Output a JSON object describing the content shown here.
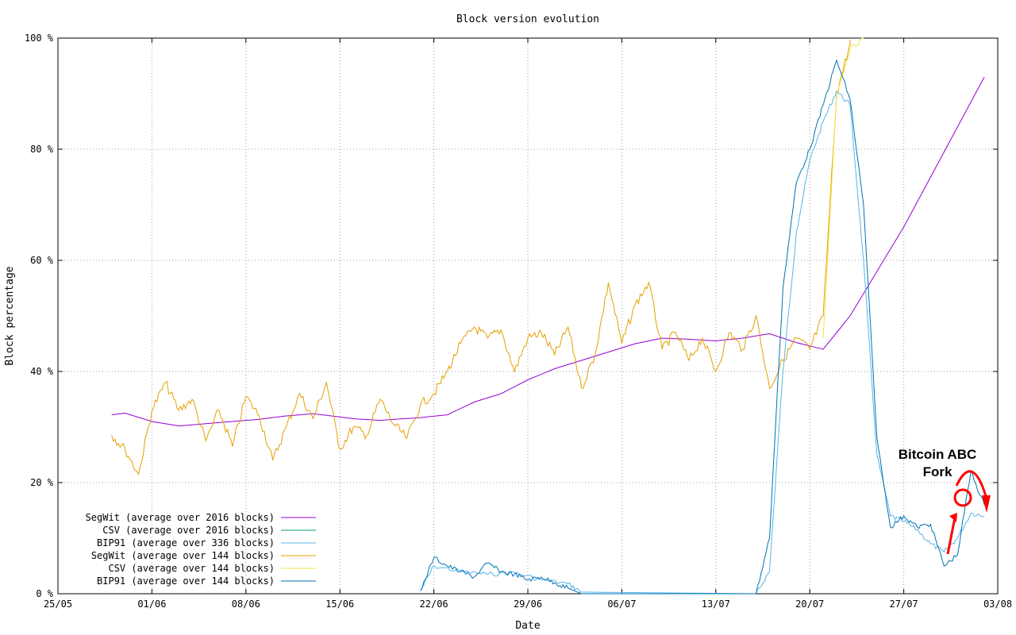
{
  "chart_data": {
    "type": "line",
    "title": "Block version evolution",
    "xlabel": "Date",
    "ylabel": "Block percentage",
    "x_ticks": [
      "25/05",
      "01/06",
      "08/06",
      "15/06",
      "22/06",
      "29/06",
      "06/07",
      "13/07",
      "20/07",
      "27/07",
      "03/08"
    ],
    "y_ticks": [
      "0 %",
      "20 %",
      "40 %",
      "60 %",
      "80 %",
      "100 %"
    ],
    "xlim": [
      "25/05",
      "03/08"
    ],
    "ylim": [
      0,
      100
    ],
    "grid": true,
    "legend_position": "bottom-left",
    "series": [
      {
        "name": "SegWit (average over 2016 blocks)",
        "color": "#9400d3",
        "points": [
          [
            "29/05",
            32.2
          ],
          [
            "30/05",
            32.5
          ],
          [
            "01/06",
            31
          ],
          [
            "03/06",
            30.2
          ],
          [
            "06/06",
            30.8
          ],
          [
            "09/06",
            31.4
          ],
          [
            "11/06",
            32.0
          ],
          [
            "13/06",
            32.4
          ],
          [
            "16/06",
            31.5
          ],
          [
            "18/06",
            31.2
          ],
          [
            "21/06",
            31.7
          ],
          [
            "23/06",
            32.2
          ],
          [
            "25/06",
            34.5
          ],
          [
            "27/06",
            36.0
          ],
          [
            "29/06",
            38.5
          ],
          [
            "01/07",
            40.5
          ],
          [
            "03/07",
            42.0
          ],
          [
            "05/07",
            43.5
          ],
          [
            "07/07",
            45.0
          ],
          [
            "09/07",
            46.0
          ],
          [
            "11/07",
            45.8
          ],
          [
            "13/07",
            45.5
          ],
          [
            "15/07",
            46.0
          ],
          [
            "17/07",
            46.8
          ],
          [
            "19/07",
            45.2
          ],
          [
            "21/07",
            44.0
          ],
          [
            "23/07",
            50.0
          ],
          [
            "25/07",
            58.0
          ],
          [
            "27/07",
            66.0
          ],
          [
            "29/07",
            75.0
          ],
          [
            "31/07",
            84.0
          ],
          [
            "02/08",
            93.0
          ]
        ]
      },
      {
        "name": "CSV (average over 2016 blocks)",
        "color": "#009e73",
        "points": []
      },
      {
        "name": "BIP91 (average over 336 blocks)",
        "color": "#56b4e9",
        "points": [
          [
            "21/06",
            0.5
          ],
          [
            "22/06",
            5.0
          ],
          [
            "24/06",
            4.0
          ],
          [
            "26/06",
            3.5
          ],
          [
            "28/06",
            3.8
          ],
          [
            "30/06",
            2.5
          ],
          [
            "02/07",
            1.8
          ],
          [
            "03/07",
            0.3
          ],
          [
            "16/07",
            0
          ],
          [
            "17/07",
            4.0
          ],
          [
            "18/07",
            40.0
          ],
          [
            "19/07",
            65.0
          ],
          [
            "20/07",
            78.0
          ],
          [
            "21/07",
            85.0
          ],
          [
            "22/07",
            90.5
          ],
          [
            "23/07",
            88.0
          ],
          [
            "24/07",
            60.0
          ],
          [
            "25/07",
            25.0
          ],
          [
            "26/07",
            14.0
          ],
          [
            "27/07",
            13.0
          ],
          [
            "28/07",
            11.5
          ],
          [
            "29/07",
            9.0
          ],
          [
            "30/07",
            7.5
          ],
          [
            "31/07",
            10.0
          ],
          [
            "01/08",
            14.5
          ],
          [
            "02/08",
            14.0
          ]
        ]
      },
      {
        "name": "SegWit (average over 144 blocks)",
        "color": "#e69f00",
        "points": [
          [
            "29/05",
            28.5
          ],
          [
            "30/05",
            26.0
          ],
          [
            "31/05",
            21.5
          ],
          [
            "01/06",
            33.0
          ],
          [
            "02/06",
            38.0
          ],
          [
            "03/06",
            33.0
          ],
          [
            "04/06",
            35.0
          ],
          [
            "05/06",
            27.5
          ],
          [
            "06/06",
            33.0
          ],
          [
            "07/06",
            26.5
          ],
          [
            "08/06",
            35.5
          ],
          [
            "09/06",
            32.0
          ],
          [
            "10/06",
            24.0
          ],
          [
            "11/06",
            30.0
          ],
          [
            "12/06",
            36.0
          ],
          [
            "13/06",
            31.5
          ],
          [
            "14/06",
            38.0
          ],
          [
            "15/06",
            26.0
          ],
          [
            "16/06",
            30.0
          ],
          [
            "17/06",
            28.5
          ],
          [
            "18/06",
            35.0
          ],
          [
            "19/06",
            30.5
          ],
          [
            "20/06",
            28.0
          ],
          [
            "21/06",
            34.0
          ],
          [
            "22/06",
            36.0
          ],
          [
            "23/06",
            40.0
          ],
          [
            "24/06",
            45.0
          ],
          [
            "25/06",
            48.0
          ],
          [
            "26/06",
            46.0
          ],
          [
            "27/06",
            47.5
          ],
          [
            "28/06",
            40.0
          ],
          [
            "29/06",
            46.0
          ],
          [
            "30/06",
            47.0
          ],
          [
            "01/07",
            43.0
          ],
          [
            "02/07",
            48.0
          ],
          [
            "03/07",
            37.0
          ],
          [
            "04/07",
            43.0
          ],
          [
            "05/07",
            56.0
          ],
          [
            "06/07",
            45.0
          ],
          [
            "07/07",
            52.0
          ],
          [
            "08/07",
            56.0
          ],
          [
            "09/07",
            44.0
          ],
          [
            "10/07",
            47.0
          ],
          [
            "11/07",
            42.0
          ],
          [
            "12/07",
            46.0
          ],
          [
            "13/07",
            40.0
          ],
          [
            "14/07",
            47.0
          ],
          [
            "15/07",
            44.0
          ],
          [
            "16/07",
            50.0
          ],
          [
            "17/07",
            37.0
          ],
          [
            "18/07",
            42.0
          ],
          [
            "19/07",
            46.0
          ],
          [
            "20/07",
            44.0
          ],
          [
            "21/07",
            50.0
          ],
          [
            "22/07",
            90.0
          ],
          [
            "23/07",
            99.0
          ],
          [
            "23/07",
            99.0
          ]
        ]
      },
      {
        "name": "CSV (average over 144 blocks)",
        "color": "#f0e442",
        "points": [
          [
            "21/07",
            46.0
          ],
          [
            "22/07",
            90.0
          ],
          [
            "23/07",
            98.0
          ],
          [
            "24/07",
            100.0
          ]
        ]
      },
      {
        "name": "BIP91 (average over 144 blocks)",
        "color": "#0072b2",
        "points": [
          [
            "21/06",
            0.5
          ],
          [
            "22/06",
            6.5
          ],
          [
            "23/06",
            5.0
          ],
          [
            "24/06",
            4.0
          ],
          [
            "25/06",
            3.0
          ],
          [
            "26/06",
            5.5
          ],
          [
            "27/06",
            4.0
          ],
          [
            "28/06",
            3.5
          ],
          [
            "29/06",
            2.5
          ],
          [
            "30/06",
            3.0
          ],
          [
            "01/07",
            2.0
          ],
          [
            "02/07",
            1.0
          ],
          [
            "03/07",
            0.0
          ],
          [
            "16/07",
            0.0
          ],
          [
            "17/07",
            10.0
          ],
          [
            "18/07",
            55.0
          ],
          [
            "19/07",
            74.0
          ],
          [
            "20/07",
            80.0
          ],
          [
            "21/07",
            88.0
          ],
          [
            "22/07",
            96.0
          ],
          [
            "23/07",
            89.0
          ],
          [
            "24/07",
            70.0
          ],
          [
            "25/07",
            28.0
          ],
          [
            "26/07",
            12.0
          ],
          [
            "27/07",
            14.0
          ],
          [
            "28/07",
            12.0
          ],
          [
            "29/07",
            12.5
          ],
          [
            "30/07",
            5.0
          ],
          [
            "31/07",
            7.0
          ],
          [
            "01/08",
            22.0
          ],
          [
            "02/08",
            16.0
          ]
        ]
      }
    ],
    "annotations": [
      {
        "text": "Bitcoin ABC",
        "color": "#ff0000"
      },
      {
        "text": "Fork",
        "color": "#ff0000"
      }
    ]
  }
}
